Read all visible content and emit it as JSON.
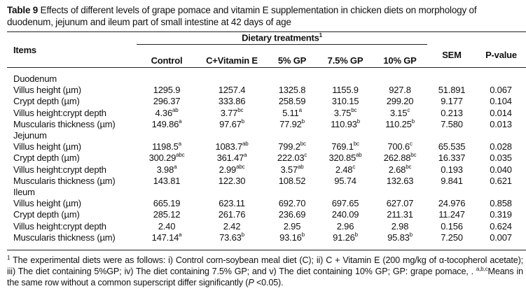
{
  "caption": {
    "label": "Table 9",
    "text": " Effects of different levels of grape pomace and vitamin E supplementation in chicken diets on morphology of duodenum, jejunum and ileum part of small intestine at 42 days of age"
  },
  "header": {
    "items": "Items",
    "group": "Dietary treatments",
    "group_sup": "1",
    "treatments": [
      "Control",
      "C+Vitamin E",
      "5% GP",
      "7.5% GP",
      "10% GP"
    ],
    "sem": "SEM",
    "pvalue": "P-value"
  },
  "sections": [
    {
      "name": "Duodenum",
      "rows": [
        {
          "label": "Villus height (µm)",
          "values": [
            [
              "1295.9",
              ""
            ],
            [
              "1257.4",
              ""
            ],
            [
              "1325.8",
              ""
            ],
            [
              "1155.9",
              ""
            ],
            [
              "927.8",
              ""
            ]
          ],
          "sem": "51.891",
          "p": "0.067"
        },
        {
          "label": "Crypt depth (µm)",
          "values": [
            [
              "296.37",
              ""
            ],
            [
              "333.86",
              ""
            ],
            [
              "258.59",
              ""
            ],
            [
              "310.15",
              ""
            ],
            [
              "299.20",
              ""
            ]
          ],
          "sem": "9.177",
          "p": "0.104"
        },
        {
          "label": "Villus height:crypt depth",
          "values": [
            [
              "4.36",
              "ab"
            ],
            [
              "3.77",
              "bc"
            ],
            [
              "5.11",
              "a"
            ],
            [
              "3.75",
              "bc"
            ],
            [
              "3.15",
              "c"
            ]
          ],
          "sem": "0.213",
          "p": "0.014"
        },
        {
          "label": "Muscularis thickness (µm)",
          "values": [
            [
              "149.86",
              "a"
            ],
            [
              "97.67",
              "b"
            ],
            [
              "77.92",
              "b"
            ],
            [
              "110.93",
              "b"
            ],
            [
              "110.25",
              "b"
            ]
          ],
          "sem": "7.580",
          "p": "0.013"
        }
      ]
    },
    {
      "name": "Jejunum",
      "rows": [
        {
          "label": "Villus height (µm)",
          "values": [
            [
              "1198.5",
              "a"
            ],
            [
              "1083.7",
              "ab"
            ],
            [
              "799.2",
              "bc"
            ],
            [
              "769.1",
              "bc"
            ],
            [
              "700.6",
              "c"
            ]
          ],
          "sem": "65.535",
          "p": "0.028"
        },
        {
          "label": "Crypt depth (µm)",
          "values": [
            [
              "300.29",
              "abc"
            ],
            [
              "361.47",
              "a"
            ],
            [
              "222.03",
              "c"
            ],
            [
              "320.85",
              "ab"
            ],
            [
              "262.88",
              "bc"
            ]
          ],
          "sem": "16.337",
          "p": "0.035"
        },
        {
          "label": "Villus height:crypt depth",
          "values": [
            [
              "3.98",
              "a"
            ],
            [
              "2.99",
              "abc"
            ],
            [
              "3.57",
              "ab"
            ],
            [
              "2.48",
              "c"
            ],
            [
              "2.68",
              "bc"
            ]
          ],
          "sem": "0.193",
          "p": "0.040"
        },
        {
          "label": "Muscularis thickness (µm)",
          "values": [
            [
              "143.81",
              ""
            ],
            [
              "122.30",
              ""
            ],
            [
              "108.52",
              ""
            ],
            [
              "95.74",
              ""
            ],
            [
              "132.63",
              ""
            ]
          ],
          "sem": "9.841",
          "p": "0.621"
        }
      ]
    },
    {
      "name": "Ileum",
      "rows": [
        {
          "label": "Villus height (µm)",
          "values": [
            [
              "665.19",
              ""
            ],
            [
              "623.11",
              ""
            ],
            [
              "692.70",
              ""
            ],
            [
              "697.65",
              ""
            ],
            [
              "627.07",
              ""
            ]
          ],
          "sem": "24.976",
          "p": "0.858"
        },
        {
          "label": "Crypt depth (µm)",
          "values": [
            [
              "285.12",
              ""
            ],
            [
              "261.76",
              ""
            ],
            [
              "236.69",
              ""
            ],
            [
              "240.09",
              ""
            ],
            [
              "211.31",
              ""
            ]
          ],
          "sem": "11.247",
          "p": "0.319"
        },
        {
          "label": "Villus height:crypt depth",
          "values": [
            [
              "2.40",
              ""
            ],
            [
              "2.42",
              ""
            ],
            [
              "2.95",
              ""
            ],
            [
              "2.96",
              ""
            ],
            [
              "2.98",
              ""
            ]
          ],
          "sem": "0.156",
          "p": "0.624"
        },
        {
          "label": "Muscularis thickness (µm)",
          "values": [
            [
              "147.14",
              "a"
            ],
            [
              "73.63",
              "b"
            ],
            [
              "93.16",
              "b"
            ],
            [
              "91.26",
              "b"
            ],
            [
              "95.83",
              "b"
            ]
          ],
          "sem": "7.250",
          "p": "0.007"
        }
      ]
    }
  ],
  "footnote": {
    "sup1": "1",
    "text1": " The experimental diets were as follows: i) Control corn-soybean meal diet (C); ii) C + Vitamin E (200 mg/kg of α-tocopherol acetate); iii) The diet containing 5%GP; iv) The diet containing 7.5% GP; and v) The diet containing 10% GP; GP: grape pomace, .",
    "sup2": "a,b,c",
    "text2": "Means in the same row without a common superscript differ significantly (",
    "p_italic": "P",
    "text3": " <0.05)."
  }
}
